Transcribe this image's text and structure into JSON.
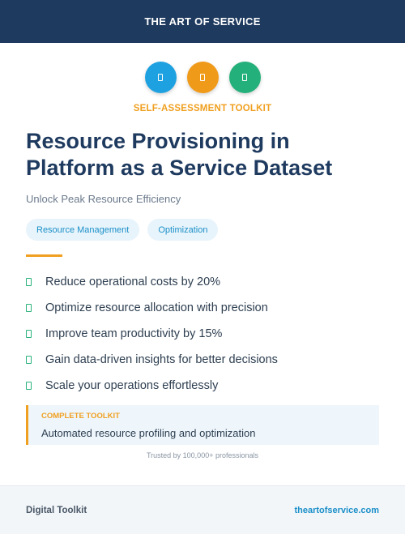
{
  "header": {
    "brand": "THE ART OF SERVICE"
  },
  "icons": [
    {
      "name": "blue-circle-icon",
      "color": "#1ea1e0"
    },
    {
      "name": "orange-circle-icon",
      "color": "#f09a1a"
    },
    {
      "name": "green-circle-icon",
      "color": "#24b07a"
    }
  ],
  "kicker": "SELF-ASSESSMENT TOOLKIT",
  "title": "Resource Provisioning in Platform as a Service Dataset",
  "subtitle": "Unlock Peak Resource Efficiency",
  "tags": [
    "Resource Management",
    "Optimization"
  ],
  "benefits": [
    "Reduce operational costs by 20%",
    "Optimize resource allocation with precision",
    "Improve team productivity by 15%",
    "Gain data-driven insights for better decisions",
    "Scale your operations effortlessly"
  ],
  "callout": {
    "label": "COMPLETE TOOLKIT",
    "text": "Automated resource profiling and optimization"
  },
  "trusted": "Trusted by 100,000+ professionals",
  "footer": {
    "left": "Digital Toolkit",
    "right": "theartofservice.com"
  }
}
